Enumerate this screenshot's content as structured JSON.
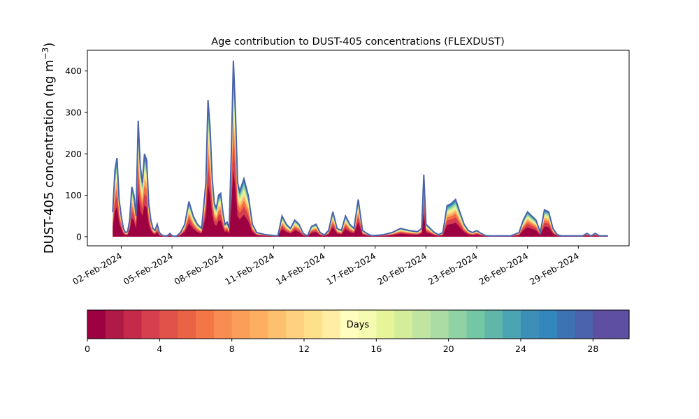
{
  "chart_data": {
    "type": "area",
    "title": "Age contribution to DUST-405 concentrations (FLEXDUST)",
    "ylabel_main": "DUST-405 concentration (ng m",
    "ylabel_sup": "−3",
    "ylabel_close": ")",
    "xlabel": "",
    "ylim": [
      -22,
      450
    ],
    "xlim": [
      "2024-01-31",
      "2024-03-03"
    ],
    "y_ticks": [
      0,
      100,
      200,
      300,
      400
    ],
    "x_ticks": [
      "02-Feb-2024",
      "05-Feb-2024",
      "08-Feb-2024",
      "11-Feb-2024",
      "14-Feb-2024",
      "17-Feb-2024",
      "20-Feb-2024",
      "23-Feb-2024",
      "26-Feb-2024",
      "29-Feb-2024"
    ],
    "grid": false,
    "series_note": "stacked contributions by particle age (days 0–30), total outlined",
    "total": {
      "x": [
        "2024-02-01 12:00",
        "2024-02-01 15:00",
        "2024-02-01 18:00",
        "2024-02-01 21:00",
        "2024-02-02 00:00",
        "2024-02-02 03:00",
        "2024-02-02 06:00",
        "2024-02-02 09:00",
        "2024-02-02 12:00",
        "2024-02-02 15:00",
        "2024-02-02 18:00",
        "2024-02-02 21:00",
        "2024-02-03 00:00",
        "2024-02-03 03:00",
        "2024-02-03 06:00",
        "2024-02-03 09:00",
        "2024-02-03 12:00",
        "2024-02-03 15:00",
        "2024-02-03 18:00",
        "2024-02-03 21:00",
        "2024-02-04 00:00",
        "2024-02-04 03:00",
        "2024-02-04 06:00",
        "2024-02-04 09:00",
        "2024-02-04 12:00",
        "2024-02-04 15:00",
        "2024-02-04 18:00",
        "2024-02-04 21:00",
        "2024-02-05 00:00",
        "2024-02-05 06:00",
        "2024-02-05 12:00",
        "2024-02-05 18:00",
        "2024-02-06 00:00",
        "2024-02-06 06:00",
        "2024-02-06 12:00",
        "2024-02-06 18:00",
        "2024-02-07 00:00",
        "2024-02-07 03:00",
        "2024-02-07 06:00",
        "2024-02-07 09:00",
        "2024-02-07 12:00",
        "2024-02-07 15:00",
        "2024-02-07 18:00",
        "2024-02-07 21:00",
        "2024-02-08 00:00",
        "2024-02-08 03:00",
        "2024-02-08 06:00",
        "2024-02-08 09:00",
        "2024-02-08 12:00",
        "2024-02-08 15:00",
        "2024-02-08 18:00",
        "2024-02-08 21:00",
        "2024-02-09 00:00",
        "2024-02-09 06:00",
        "2024-02-09 12:00",
        "2024-02-09 18:00",
        "2024-02-10 00:00",
        "2024-02-10 12:00",
        "2024-02-11 00:00",
        "2024-02-11 06:00",
        "2024-02-11 12:00",
        "2024-02-11 18:00",
        "2024-02-12 00:00",
        "2024-02-12 06:00",
        "2024-02-12 12:00",
        "2024-02-12 18:00",
        "2024-02-13 00:00",
        "2024-02-13 06:00",
        "2024-02-13 12:00",
        "2024-02-13 18:00",
        "2024-02-14 00:00",
        "2024-02-14 06:00",
        "2024-02-14 12:00",
        "2024-02-14 18:00",
        "2024-02-15 00:00",
        "2024-02-15 06:00",
        "2024-02-15 12:00",
        "2024-02-15 18:00",
        "2024-02-16 00:00",
        "2024-02-16 06:00",
        "2024-02-16 12:00",
        "2024-02-16 18:00",
        "2024-02-17 00:00",
        "2024-02-17 12:00",
        "2024-02-18 00:00",
        "2024-02-18 12:00",
        "2024-02-19 00:00",
        "2024-02-19 12:00",
        "2024-02-19 18:00",
        "2024-02-19 21:00",
        "2024-02-20 00:00",
        "2024-02-20 06:00",
        "2024-02-20 12:00",
        "2024-02-20 18:00",
        "2024-02-21 00:00",
        "2024-02-21 06:00",
        "2024-02-21 12:00",
        "2024-02-21 18:00",
        "2024-02-22 00:00",
        "2024-02-22 06:00",
        "2024-02-22 12:00",
        "2024-02-22 18:00",
        "2024-02-23 00:00",
        "2024-02-23 06:00",
        "2024-02-23 12:00",
        "2024-02-23 18:00",
        "2024-02-24 00:00",
        "2024-02-24 12:00",
        "2024-02-25 00:00",
        "2024-02-25 12:00",
        "2024-02-25 18:00",
        "2024-02-26 00:00",
        "2024-02-26 06:00",
        "2024-02-26 12:00",
        "2024-02-26 18:00",
        "2024-02-27 00:00",
        "2024-02-27 06:00",
        "2024-02-27 12:00",
        "2024-02-27 18:00",
        "2024-02-28 00:00",
        "2024-02-28 12:00",
        "2024-02-29 00:00",
        "2024-02-29 06:00",
        "2024-02-29 12:00",
        "2024-02-29 18:00",
        "2024-03-01 00:00",
        "2024-03-01 06:00",
        "2024-03-01 12:00",
        "2024-03-01 18:00"
      ],
      "y": [
        60,
        160,
        190,
        90,
        50,
        20,
        10,
        12,
        40,
        120,
        100,
        50,
        280,
        170,
        130,
        200,
        185,
        80,
        40,
        20,
        15,
        30,
        10,
        5,
        2,
        2,
        3,
        8,
        2,
        1,
        10,
        30,
        85,
        50,
        30,
        20,
        130,
        330,
        260,
        140,
        80,
        70,
        100,
        105,
        60,
        30,
        35,
        20,
        200,
        425,
        300,
        130,
        110,
        140,
        100,
        30,
        10,
        5,
        3,
        2,
        50,
        30,
        20,
        40,
        30,
        8,
        2,
        25,
        30,
        10,
        4,
        15,
        60,
        20,
        15,
        50,
        30,
        20,
        90,
        15,
        8,
        3,
        3,
        5,
        10,
        20,
        15,
        12,
        20,
        150,
        30,
        20,
        10,
        5,
        10,
        75,
        80,
        90,
        60,
        30,
        15,
        10,
        15,
        8,
        3,
        2,
        2,
        2,
        2,
        10,
        40,
        60,
        50,
        40,
        10,
        65,
        60,
        20,
        5,
        2,
        2,
        2,
        2,
        8,
        2,
        8,
        2,
        2,
        2
      ]
    },
    "colorbar": {
      "label": "Days",
      "range": [
        0,
        30
      ],
      "ticks": [
        0,
        4,
        8,
        12,
        16,
        20,
        24,
        28
      ],
      "colors": [
        "#9e0142",
        "#b01a47",
        "#c52a4a",
        "#d6404e",
        "#e1524a",
        "#ea6345",
        "#f47546",
        "#f88d52",
        "#fb9e5a",
        "#fdae61",
        "#fdc06e",
        "#fed07f",
        "#fee08b",
        "#feeda3",
        "#fffebf",
        "#f5fbb0",
        "#e6f598",
        "#d4ed9b",
        "#bfe5a0",
        "#aadca4",
        "#8fd2a4",
        "#74c7a5",
        "#5fb6a9",
        "#4aa4b2",
        "#3d8fb8",
        "#3288bd",
        "#3e73b3",
        "#4a63ac",
        "#5e4fa2",
        "#5e4fa2"
      ]
    }
  }
}
